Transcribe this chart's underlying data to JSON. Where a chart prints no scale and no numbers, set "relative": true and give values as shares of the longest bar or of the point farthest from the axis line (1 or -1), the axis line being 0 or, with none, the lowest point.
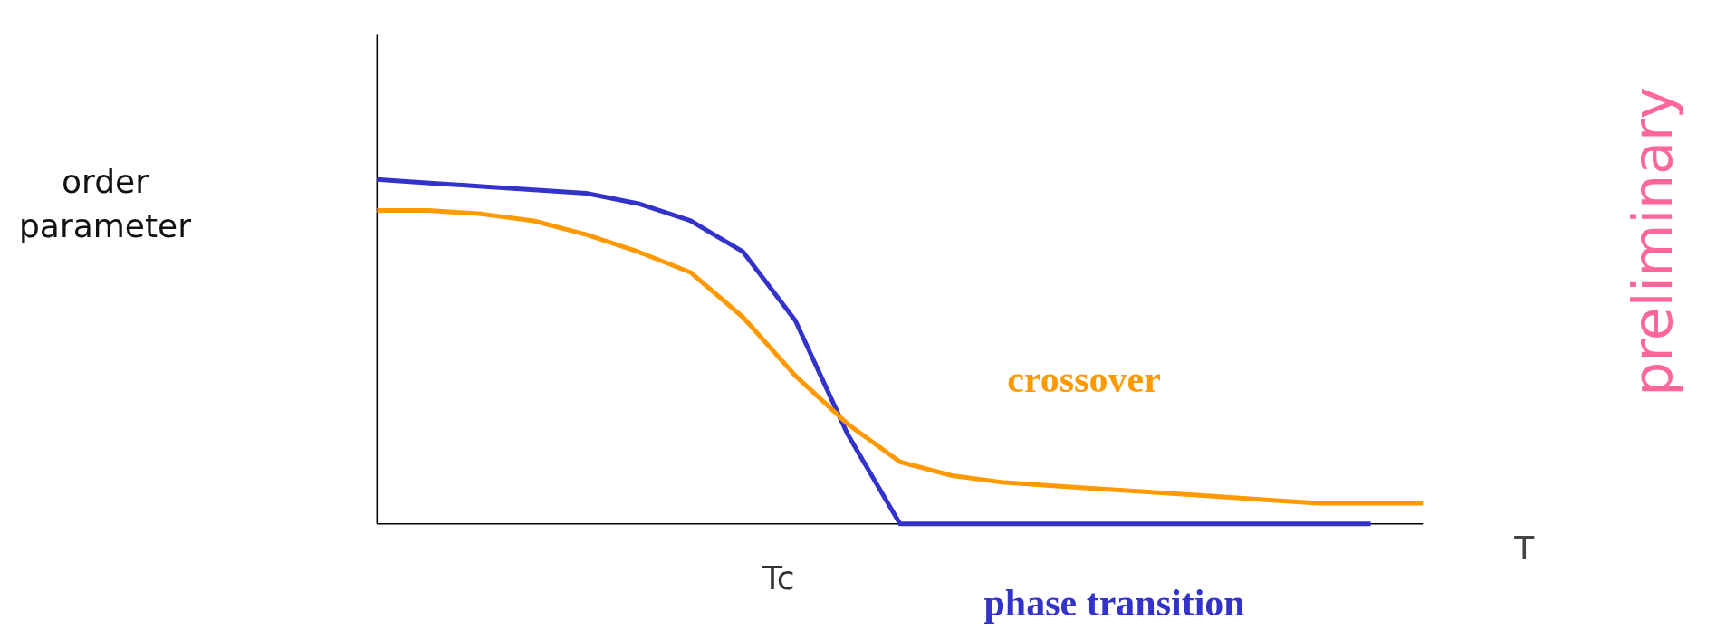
{
  "chart_data": {
    "type": "line",
    "relative": true,
    "xlabel": "T",
    "marker": "none",
    "line_style": "solid",
    "categories": [
      null,
      null,
      null,
      null,
      null,
      null,
      null,
      null,
      null,
      null,
      null,
      null,
      null,
      null,
      null,
      null,
      null,
      null,
      null,
      null,
      null
    ],
    "series": [
      {
        "name": "phase transition",
        "color": "#3333cc",
        "values": [
          1,
          0.99,
          0.98,
          0.97,
          0.96,
          0.93,
          0.88,
          0.79,
          0.59,
          0.26,
          0,
          0,
          0,
          0,
          0,
          0,
          0,
          0,
          0,
          0,
          null
        ]
      },
      {
        "name": "crossover",
        "color": "#ff9900",
        "values": [
          0.91,
          0.91,
          0.9,
          0.88,
          0.84,
          0.79,
          0.73,
          0.6,
          0.43,
          0.29,
          0.18,
          0.14,
          0.12,
          0.11,
          0.1,
          0.09,
          0.08,
          0.07,
          0.06,
          0.06,
          0.06
        ]
      }
    ],
    "annotations": [
      "order parameter",
      "Tc",
      "preliminary"
    ]
  }
}
